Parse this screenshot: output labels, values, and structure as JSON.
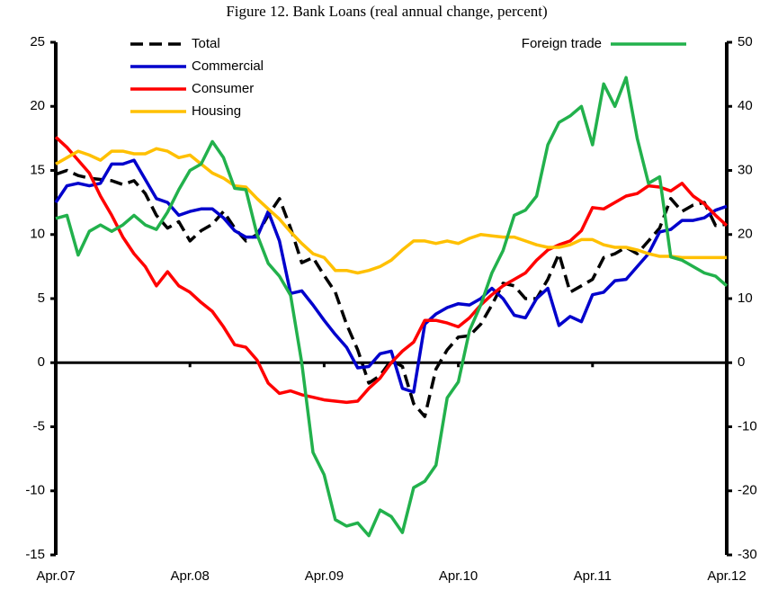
{
  "chart_data": {
    "type": "line",
    "title": "Figure 12. Bank Loans (real annual change, percent)",
    "categories": [
      "Apr.07",
      null,
      null,
      null,
      null,
      null,
      null,
      null,
      null,
      null,
      null,
      null,
      "Apr.08",
      null,
      null,
      null,
      null,
      null,
      null,
      null,
      null,
      null,
      null,
      null,
      "Apr.09",
      null,
      null,
      null,
      null,
      null,
      null,
      null,
      null,
      null,
      null,
      null,
      "Apr.10",
      null,
      null,
      null,
      null,
      null,
      null,
      null,
      null,
      null,
      null,
      null,
      "Apr.11",
      null,
      null,
      null,
      null,
      null,
      null,
      null,
      null,
      null,
      null,
      null,
      "Apr.12"
    ],
    "ylim": [
      -15,
      25
    ],
    "yticks": [
      -15,
      -10,
      -5,
      0,
      5,
      10,
      15,
      20,
      25
    ],
    "y2lim": [
      -30,
      50
    ],
    "y2ticks": [
      -30,
      -20,
      -10,
      0,
      10,
      20,
      30,
      40,
      50
    ],
    "grid": false,
    "legend": "upper left",
    "series": [
      {
        "name": "Total",
        "color": "#000000",
        "linestyle": "dashed",
        "values": [
          14.7,
          15,
          14.6,
          14.4,
          14.3,
          14.2,
          13.9,
          14.2,
          13.2,
          11.5,
          10.5,
          11,
          9.5,
          10.3,
          10.8,
          11.8,
          10.5,
          9.5,
          10,
          11.5,
          12.8,
          10.5,
          7.8,
          8.2,
          6.8,
          5.5,
          3,
          1,
          -1.6,
          -1,
          0.2,
          -0.3,
          -3.2,
          -4.2,
          -0.5,
          1,
          2,
          2.1,
          3,
          4.5,
          6.2,
          6,
          5,
          5,
          6.5,
          8.5,
          5.5,
          6,
          6.5,
          8.2,
          8.5,
          9,
          8.5,
          9.5,
          10.5,
          12.8,
          11.8,
          12.3,
          12.5,
          10.7,
          10.8
        ]
      },
      {
        "name": "Commercial",
        "color": "#0000cc",
        "linestyle": "solid",
        "values": [
          12.5,
          13.8,
          14,
          13.8,
          14,
          15.5,
          15.5,
          15.8,
          14.3,
          12.8,
          12.5,
          11.5,
          11.8,
          12,
          12,
          11.3,
          10.3,
          9.8,
          9.8,
          11.8,
          9.5,
          5.4,
          5.6,
          4.5,
          3.3,
          2.2,
          1.2,
          -0.4,
          -0.3,
          0.7,
          0.9,
          -2,
          -2.3,
          3,
          3.8,
          4.3,
          4.6,
          4.5,
          5,
          5.8,
          5,
          3.7,
          3.5,
          5,
          5.8,
          2.9,
          3.6,
          3.2,
          5.3,
          5.5,
          6.4,
          6.5,
          7.5,
          8.5,
          10.2,
          10.4,
          11.1,
          11.1,
          11.3,
          11.9,
          12.2
        ]
      },
      {
        "name": "Consumer",
        "color": "#ff0000",
        "linestyle": "solid",
        "values": [
          17.6,
          16.8,
          15.8,
          14.8,
          13,
          11.5,
          9.8,
          8.5,
          7.5,
          6,
          7.1,
          6,
          5.5,
          4.7,
          4,
          2.8,
          1.4,
          1.2,
          0.2,
          -1.6,
          -2.4,
          -2.2,
          -2.5,
          -2.7,
          -2.9,
          -3,
          -3.1,
          -3,
          -2,
          -1.2,
          0,
          0.9,
          1.6,
          3.3,
          3.3,
          3.1,
          2.8,
          3.5,
          4.5,
          5.3,
          6,
          6.5,
          7,
          8,
          8.8,
          9.2,
          9.5,
          10.3,
          12.1,
          12,
          12.5,
          13,
          13.2,
          13.8,
          13.7,
          13.4,
          14,
          13,
          12.4,
          11.5,
          10.7
        ]
      },
      {
        "name": "Housing",
        "color": "#ffc000",
        "linestyle": "solid",
        "values": [
          15.5,
          16,
          16.5,
          16.2,
          15.8,
          16.5,
          16.5,
          16.3,
          16.3,
          16.7,
          16.5,
          16,
          16.2,
          15.5,
          14.8,
          14.4,
          13.8,
          13.7,
          12.8,
          12,
          11.2,
          10.2,
          9.3,
          8.5,
          8.2,
          7.2,
          7.2,
          7,
          7.2,
          7.5,
          8,
          8.8,
          9.5,
          9.5,
          9.3,
          9.5,
          9.3,
          9.7,
          10,
          9.9,
          9.8,
          9.8,
          9.5,
          9.2,
          9,
          9,
          9.2,
          9.6,
          9.6,
          9.2,
          9,
          9,
          8.8,
          8.5,
          8.3,
          8.3,
          8.2,
          8.2,
          8.2,
          8.2,
          8.2
        ]
      },
      {
        "name": "Foreign trade",
        "color": "#22b14c",
        "linestyle": "solid",
        "axis": "y2",
        "values": [
          22.5,
          23,
          16.8,
          20.5,
          21.5,
          20.5,
          21.5,
          23,
          21.5,
          20.8,
          23.5,
          27,
          30,
          31,
          34.5,
          32,
          27.2,
          27,
          20,
          15.5,
          13.5,
          10.5,
          0,
          -14,
          -17.5,
          -24.5,
          -25.5,
          -25,
          -27,
          -23,
          -24,
          -26.5,
          -19.5,
          -18.5,
          -16,
          -5.5,
          -3,
          5,
          9,
          14,
          17.5,
          23,
          23.8,
          26,
          34,
          37.5,
          38.5,
          40,
          34,
          43.5,
          40,
          44.5,
          35,
          28,
          29,
          16.5,
          16,
          15,
          14,
          13.5,
          12
        ]
      }
    ]
  }
}
